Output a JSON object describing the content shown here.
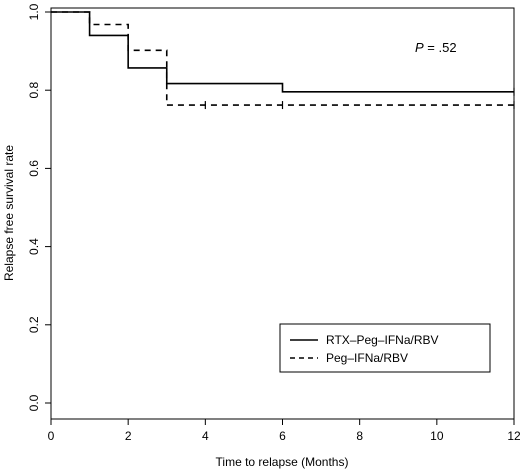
{
  "chart_data": {
    "type": "line",
    "title": "",
    "xlabel": "Time to relapse (Months)",
    "ylabel": "Relapse free survival rate",
    "xlim": [
      0,
      12
    ],
    "ylim": [
      0,
      1
    ],
    "x_ticks": [
      "0",
      "2",
      "4",
      "6",
      "8",
      "10",
      "12"
    ],
    "y_ticks": [
      "0.0",
      "0.2",
      "0.4",
      "0.6",
      "0.8",
      "1.0"
    ],
    "grid": false,
    "legend_position": "bottom-right",
    "annotation": {
      "prefix": "P",
      "value": " = .52"
    },
    "series": [
      {
        "name": "RTX–Peg–IFNa/RBV",
        "style": "solid",
        "color": "#000000",
        "steps": [
          [
            0,
            1.0
          ],
          [
            1,
            0.94
          ],
          [
            2,
            0.857
          ],
          [
            3,
            0.817
          ],
          [
            6,
            0.796
          ],
          [
            12,
            0.796
          ]
        ],
        "censored": [
          [
            12,
            0.796
          ]
        ]
      },
      {
        "name": "Peg–IFNa/RBV",
        "style": "dashed",
        "color": "#000000",
        "steps": [
          [
            0,
            1.0
          ],
          [
            1,
            0.968
          ],
          [
            2,
            0.902
          ],
          [
            3,
            0.762
          ],
          [
            12,
            0.762
          ]
        ],
        "censored": [
          [
            4,
            0.762
          ],
          [
            6,
            0.762
          ],
          [
            12,
            0.762
          ]
        ]
      }
    ]
  }
}
